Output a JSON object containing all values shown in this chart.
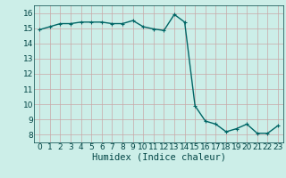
{
  "x": [
    0,
    1,
    2,
    3,
    4,
    5,
    6,
    7,
    8,
    9,
    10,
    11,
    12,
    13,
    14,
    15,
    16,
    17,
    18,
    19,
    20,
    21,
    22,
    23
  ],
  "y": [
    14.9,
    15.1,
    15.3,
    15.3,
    15.4,
    15.4,
    15.4,
    15.3,
    15.3,
    15.5,
    15.1,
    14.95,
    14.85,
    15.9,
    15.4,
    9.9,
    8.9,
    8.7,
    8.2,
    8.4,
    8.7,
    8.1,
    8.1,
    8.6
  ],
  "line_color": "#006666",
  "marker": "+",
  "marker_size": 3,
  "xlabel": "Humidex (Indice chaleur)",
  "xlim": [
    -0.5,
    23.5
  ],
  "ylim": [
    7.5,
    16.5
  ],
  "yticks": [
    8,
    9,
    10,
    11,
    12,
    13,
    14,
    15,
    16
  ],
  "xticks": [
    0,
    1,
    2,
    3,
    4,
    5,
    6,
    7,
    8,
    9,
    10,
    11,
    12,
    13,
    14,
    15,
    16,
    17,
    18,
    19,
    20,
    21,
    22,
    23
  ],
  "xtick_labels": [
    "0",
    "1",
    "2",
    "3",
    "4",
    "5",
    "6",
    "7",
    "8",
    "9",
    "10",
    "11",
    "12",
    "13",
    "14",
    "15",
    "16",
    "17",
    "18",
    "19",
    "20",
    "21",
    "22",
    "23"
  ],
  "grid_color": "#c8a8a8",
  "bg_color": "#cceee8",
  "tick_fontsize": 6.5,
  "xlabel_fontsize": 7.5,
  "linewidth": 1.0
}
